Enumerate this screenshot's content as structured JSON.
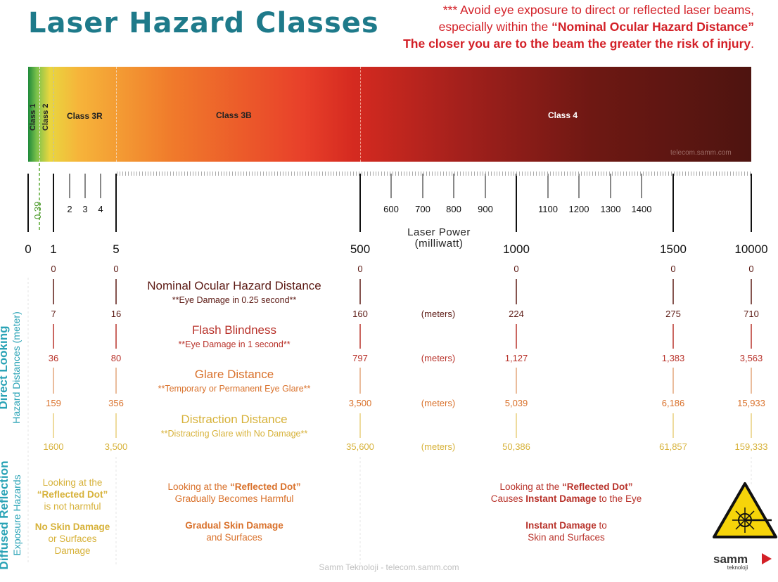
{
  "title": "Laser Hazard Classes",
  "warning": {
    "line1": "*** Avoid eye exposure to direct or reflected laser beams,",
    "line2a": "especially within the ",
    "line2b": "“Nominal Ocular Hazard Distance”",
    "line3a": "The closer you are to the beam the greater the risk of injury",
    "line3b": "."
  },
  "classes": {
    "class1": "Class 1",
    "class2": "Class 2",
    "class3r": "Class 3R",
    "class3b": "Class 3B",
    "class4": "Class 4"
  },
  "watermark": "telecom.samm.com",
  "scale": {
    "label_039": "0.39",
    "minor": [
      "2",
      "3",
      "4"
    ],
    "mid": [
      "600",
      "700",
      "800",
      "900"
    ],
    "high": [
      "1100",
      "1200",
      "1300",
      "1400"
    ],
    "axis_title_1": "Laser Power",
    "axis_title_2": "(milliwatt)",
    "axis_values": [
      "0",
      "1",
      "5",
      "500",
      "1000",
      "1500",
      "10000"
    ]
  },
  "direct": {
    "side_bold": "Direct Looking",
    "side_normal": "Hazard Distances (meter)",
    "start_values": [
      "0",
      "0",
      "0",
      "0",
      "0",
      "0"
    ],
    "unit": "(meters)",
    "rows": [
      {
        "title": "Nominal Ocular Hazard Distance",
        "sub": "**Eye Damage in 0.25 second**",
        "values": [
          "7",
          "16",
          "160",
          "224",
          "275",
          "710"
        ],
        "color": "#5c1a14"
      },
      {
        "title": "Flash Blindness",
        "sub": "**Eye Damage in 1 second**",
        "values": [
          "36",
          "80",
          "797",
          "1,127",
          "1,383",
          "3,563"
        ],
        "color": "#b8322a"
      },
      {
        "title": "Glare Distance",
        "sub": "**Temporary or Permanent Eye Glare**",
        "values": [
          "159",
          "356",
          "3,500",
          "5,039",
          "6,186",
          "15,933"
        ],
        "color": "#d9712b"
      },
      {
        "title": "Distraction Distance",
        "sub": "**Distracting Glare with No Damage**",
        "values": [
          "1600",
          "3,500",
          "35,600",
          "50,386",
          "61,857",
          "159,333"
        ],
        "color": "#d7b23a"
      }
    ]
  },
  "diffused": {
    "side_bold": "Diffused Reflection",
    "side_normal": "Exposure Hazards",
    "col1": {
      "a": "Looking at the",
      "b": "“Reflected Dot”",
      "c": "is not harmful",
      "d": "No Skin Damage",
      "e": "or Surfaces",
      "f": "Damage"
    },
    "col2": {
      "a": "Looking at the ",
      "b": "“Reflected Dot”",
      "c": "Gradually Becomes Harmful",
      "d": "Gradual Skin Damage",
      "e": "and Surfaces"
    },
    "col3": {
      "a": "Looking at the ",
      "b": "“Reflected Dot”",
      "c1": "Causes ",
      "c2": "Instant Damage",
      "c3": " to the Eye",
      "d1": "Instant Damage",
      "d2": " to",
      "e": "Skin and Surfaces"
    }
  },
  "footer": "Samm Teknoloji - telecom.samm.com",
  "logo": {
    "name": "samm",
    "sub": "teknoloji"
  },
  "colors": {
    "title": "#1e7a8a",
    "warning": "#d32027",
    "side": "#2aa3b6"
  }
}
